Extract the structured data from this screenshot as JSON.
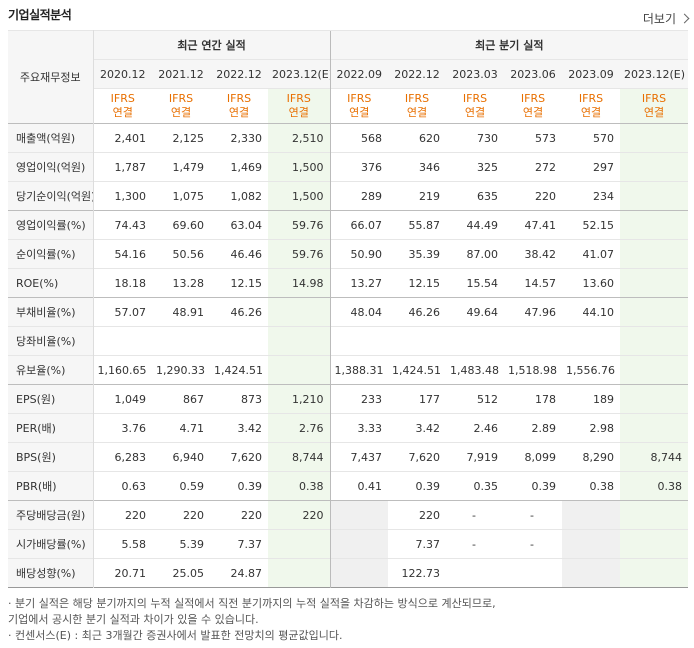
{
  "title": "기업실적분석",
  "more_label": "더보기",
  "header": {
    "corner_label": "주요재무정보",
    "annual_group": "최근 연간 실적",
    "quarter_group": "최근 분기 실적",
    "annual_periods": [
      "2020.12",
      "2021.12",
      "2022.12",
      "2023.12(E)"
    ],
    "quarter_periods": [
      "2022.09",
      "2022.12",
      "2023.03",
      "2023.06",
      "2023.09",
      "2023.12(E)"
    ],
    "standard_line1": "IFRS",
    "standard_line2": "연결"
  },
  "rows": [
    {
      "label": "매출액(억원)",
      "annual": [
        "2,401",
        "2,125",
        "2,330",
        "2,510"
      ],
      "quarter": [
        "568",
        "620",
        "730",
        "573",
        "570",
        ""
      ]
    },
    {
      "label": "영업이익(억원)",
      "annual": [
        "1,787",
        "1,479",
        "1,469",
        "1,500"
      ],
      "quarter": [
        "376",
        "346",
        "325",
        "272",
        "297",
        ""
      ]
    },
    {
      "label": "당기순이익(억원)",
      "annual": [
        "1,300",
        "1,075",
        "1,082",
        "1,500"
      ],
      "quarter": [
        "289",
        "219",
        "635",
        "220",
        "234",
        ""
      ]
    },
    {
      "label": "영업이익률(%)",
      "annual": [
        "74.43",
        "69.60",
        "63.04",
        "59.76"
      ],
      "quarter": [
        "66.07",
        "55.87",
        "44.49",
        "47.41",
        "52.15",
        ""
      ]
    },
    {
      "label": "순이익률(%)",
      "annual": [
        "54.16",
        "50.56",
        "46.46",
        "59.76"
      ],
      "quarter": [
        "50.90",
        "35.39",
        "87.00",
        "38.42",
        "41.07",
        ""
      ]
    },
    {
      "label": "ROE(%)",
      "annual": [
        "18.18",
        "13.28",
        "12.15",
        "14.98"
      ],
      "quarter": [
        "13.27",
        "12.15",
        "15.54",
        "14.57",
        "13.60",
        ""
      ]
    },
    {
      "label": "부채비율(%)",
      "annual": [
        "57.07",
        "48.91",
        "46.26",
        ""
      ],
      "quarter": [
        "48.04",
        "46.26",
        "49.64",
        "47.96",
        "44.10",
        ""
      ]
    },
    {
      "label": "당좌비율(%)",
      "annual": [
        "",
        "",
        "",
        ""
      ],
      "quarter": [
        "",
        "",
        "",
        "",
        "",
        ""
      ]
    },
    {
      "label": "유보율(%)",
      "annual": [
        "1,160.65",
        "1,290.33",
        "1,424.51",
        ""
      ],
      "quarter": [
        "1,388.31",
        "1,424.51",
        "1,483.48",
        "1,518.98",
        "1,556.76",
        ""
      ]
    },
    {
      "label": "EPS(원)",
      "annual": [
        "1,049",
        "867",
        "873",
        "1,210"
      ],
      "quarter": [
        "233",
        "177",
        "512",
        "178",
        "189",
        ""
      ]
    },
    {
      "label": "PER(배)",
      "annual": [
        "3.76",
        "4.71",
        "3.42",
        "2.76"
      ],
      "quarter": [
        "3.33",
        "3.42",
        "2.46",
        "2.89",
        "2.98",
        ""
      ]
    },
    {
      "label": "BPS(원)",
      "annual": [
        "6,283",
        "6,940",
        "7,620",
        "8,744"
      ],
      "quarter": [
        "7,437",
        "7,620",
        "7,919",
        "8,099",
        "8,290",
        "8,744"
      ]
    },
    {
      "label": "PBR(배)",
      "annual": [
        "0.63",
        "0.59",
        "0.39",
        "0.38"
      ],
      "quarter": [
        "0.41",
        "0.39",
        "0.35",
        "0.39",
        "0.38",
        "0.38"
      ]
    },
    {
      "label": "주당배당금(원)",
      "annual": [
        "220",
        "220",
        "220",
        "220"
      ],
      "quarter": [
        "",
        "220",
        "-",
        "-",
        "",
        ""
      ]
    },
    {
      "label": "시가배당률(%)",
      "annual": [
        "5.58",
        "5.39",
        "7.37",
        ""
      ],
      "quarter": [
        "",
        "7.37",
        "-",
        "-",
        "",
        ""
      ]
    },
    {
      "label": "배당성향(%)",
      "annual": [
        "20.71",
        "25.05",
        "24.87",
        ""
      ],
      "quarter": [
        "",
        "122.73",
        "",
        "",
        "",
        ""
      ]
    }
  ],
  "notes": [
    "· 분기 실적은 해당 분기까지의 누적 실적에서 직전 분기까지의 누적 실적을 차감하는 방식으로 계산되므로,",
    "  기업에서 공시한 분기 실적과 차이가 있을 수 있습니다.",
    "· 컨센서스(E) : 최근 3개월간 증권사에서 발표한 전망치의 평균값입니다."
  ]
}
